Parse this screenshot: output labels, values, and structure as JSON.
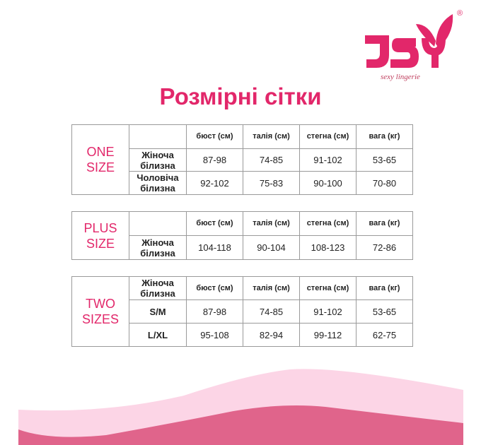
{
  "logo": {
    "text": "JSY",
    "tagline": "sexy lingerie",
    "registered": "®"
  },
  "title": "Розмірні сітки",
  "columns": [
    "бюст (см)",
    "талія (см)",
    "стегна (см)",
    "вага (кг)"
  ],
  "tables": [
    {
      "category": [
        "ONE",
        "SIZE"
      ],
      "rows": [
        {
          "label": [
            "Жіноча",
            "білизна"
          ],
          "values": [
            "87-98",
            "74-85",
            "91-102",
            "53-65"
          ]
        },
        {
          "label": [
            "Чоловіча",
            "білизна"
          ],
          "values": [
            "92-102",
            "75-83",
            "90-100",
            "70-80"
          ]
        }
      ]
    },
    {
      "category": [
        "PLUS",
        "SIZE"
      ],
      "rows": [
        {
          "label": [
            "Жіноча",
            "білизна"
          ],
          "values": [
            "104-118",
            "90-104",
            "108-123",
            "72-86"
          ]
        }
      ]
    },
    {
      "category": [
        "TWO",
        "SIZES"
      ],
      "header_label": [
        "Жіноча",
        "білизна"
      ],
      "rows": [
        {
          "label": [
            "S/M"
          ],
          "values": [
            "87-98",
            "74-85",
            "91-102",
            "53-65"
          ]
        },
        {
          "label": [
            "L/XL"
          ],
          "values": [
            "95-108",
            "82-94",
            "99-112",
            "62-75"
          ]
        }
      ]
    }
  ],
  "colors": {
    "accent": "#e2276a",
    "wave_light": "#fcd5e6",
    "wave_dark": "#e0648b"
  }
}
